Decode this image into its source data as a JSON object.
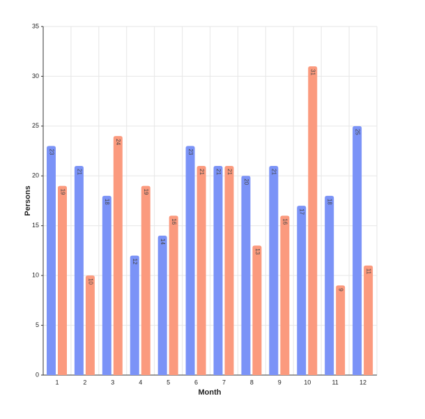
{
  "chart_data": {
    "type": "bar",
    "x_label": "Month",
    "y_label": "Persons",
    "categories": [
      "1",
      "2",
      "3",
      "4",
      "5",
      "6",
      "7",
      "8",
      "9",
      "10",
      "11",
      "12"
    ],
    "series": [
      {
        "color": "#7b93f7",
        "values": [
          23,
          21,
          18,
          12,
          14,
          23,
          21,
          20,
          21,
          17,
          18,
          25
        ]
      },
      {
        "color": "#fb9a7e",
        "values": [
          19,
          10,
          24,
          19,
          16,
          21,
          21,
          13,
          16,
          31,
          9,
          11
        ]
      }
    ],
    "ylim": [
      0,
      35
    ],
    "yticks": [
      0,
      5,
      10,
      15,
      20,
      25,
      30,
      35
    ],
    "grid": true
  }
}
